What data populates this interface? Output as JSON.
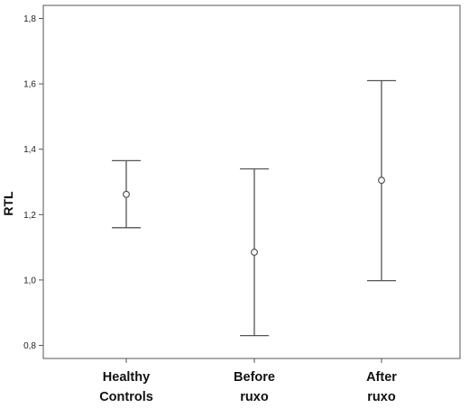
{
  "chart_data": {
    "type": "errorbar",
    "ylabel": "RTL",
    "xlabel": "",
    "ylim": [
      0.76,
      1.84
    ],
    "yticks": [
      0.8,
      1.0,
      1.2,
      1.4,
      1.6,
      1.8
    ],
    "ytick_labels": [
      "0,8",
      "1,0",
      "1,2",
      "1,4",
      "1,6",
      "1,8"
    ],
    "grid": false,
    "categories": [
      {
        "lines": [
          "Healthy",
          "Controls"
        ]
      },
      {
        "lines": [
          "Before",
          "ruxo"
        ]
      },
      {
        "lines": [
          "After",
          "ruxo"
        ]
      }
    ],
    "series": [
      {
        "mean": [
          1.262,
          1.085,
          1.305
        ],
        "lower": [
          1.16,
          0.83,
          0.998
        ],
        "upper": [
          1.365,
          1.34,
          1.61
        ]
      }
    ],
    "colors": {
      "line": "#555555",
      "frame": "#555555"
    }
  }
}
